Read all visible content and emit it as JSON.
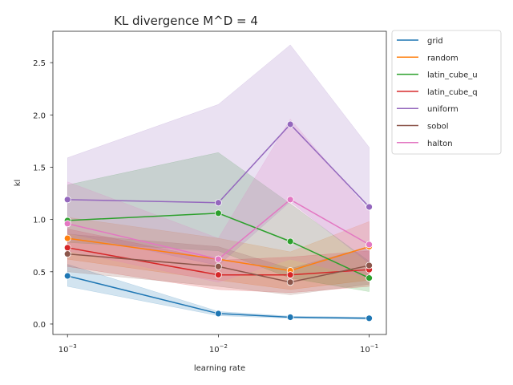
{
  "chart_data": {
    "type": "line",
    "title": "KL divergence M^D = 4",
    "xlabel": "learning rate",
    "ylabel": "kl",
    "x_scale": "log",
    "x": [
      0.001,
      0.01,
      0.03,
      0.1
    ],
    "xlim": [
      0.0008,
      0.13
    ],
    "ylim": [
      -0.1,
      2.8
    ],
    "x_ticks": [
      {
        "value": 0.001,
        "base": "10",
        "exp": "−3"
      },
      {
        "value": 0.01,
        "base": "10",
        "exp": "−2"
      },
      {
        "value": 0.1,
        "base": "10",
        "exp": "−1"
      }
    ],
    "y_ticks": [
      "0.0",
      "0.5",
      "1.0",
      "1.5",
      "2.0",
      "2.5"
    ],
    "grid": false,
    "legend_position": "outside-top-right",
    "series": [
      {
        "name": "grid",
        "color": "#1f77b4",
        "values": [
          0.46,
          0.1,
          0.065,
          0.055
        ],
        "lower": [
          0.36,
          0.08,
          0.055,
          0.045
        ],
        "upper": [
          0.57,
          0.12,
          0.075,
          0.065
        ]
      },
      {
        "name": "random",
        "color": "#ff7f0e",
        "values": [
          0.82,
          0.62,
          0.51,
          0.74
        ],
        "lower": [
          0.62,
          0.42,
          0.33,
          0.42
        ],
        "upper": [
          1.02,
          0.82,
          0.69,
          0.98
        ]
      },
      {
        "name": "latin_cube_u",
        "color": "#2ca02c",
        "values": [
          0.99,
          1.06,
          0.79,
          0.44
        ],
        "lower": [
          0.78,
          0.7,
          0.44,
          0.31
        ],
        "upper": [
          1.33,
          1.64,
          1.15,
          0.6
        ]
      },
      {
        "name": "latin_cube_q",
        "color": "#d62728",
        "values": [
          0.73,
          0.47,
          0.47,
          0.52
        ],
        "lower": [
          0.55,
          0.33,
          0.3,
          0.36
        ],
        "upper": [
          0.91,
          0.61,
          0.64,
          0.7
        ]
      },
      {
        "name": "uniform",
        "color": "#9467bd",
        "values": [
          1.19,
          1.16,
          1.91,
          1.12
        ],
        "lower": [
          0.87,
          0.56,
          1.17,
          0.58
        ],
        "upper": [
          1.59,
          2.1,
          2.67,
          1.69
        ]
      },
      {
        "name": "sobol",
        "color": "#8c564b",
        "values": [
          0.67,
          0.55,
          0.4,
          0.56
        ],
        "lower": [
          0.5,
          0.36,
          0.28,
          0.38
        ],
        "upper": [
          0.86,
          0.74,
          0.53,
          0.74
        ]
      },
      {
        "name": "halton",
        "color": "#e377c2",
        "values": [
          0.96,
          0.62,
          1.19,
          0.76
        ],
        "lower": [
          0.7,
          0.4,
          0.62,
          0.44
        ],
        "upper": [
          1.36,
          0.82,
          1.96,
          1.08
        ]
      }
    ]
  }
}
